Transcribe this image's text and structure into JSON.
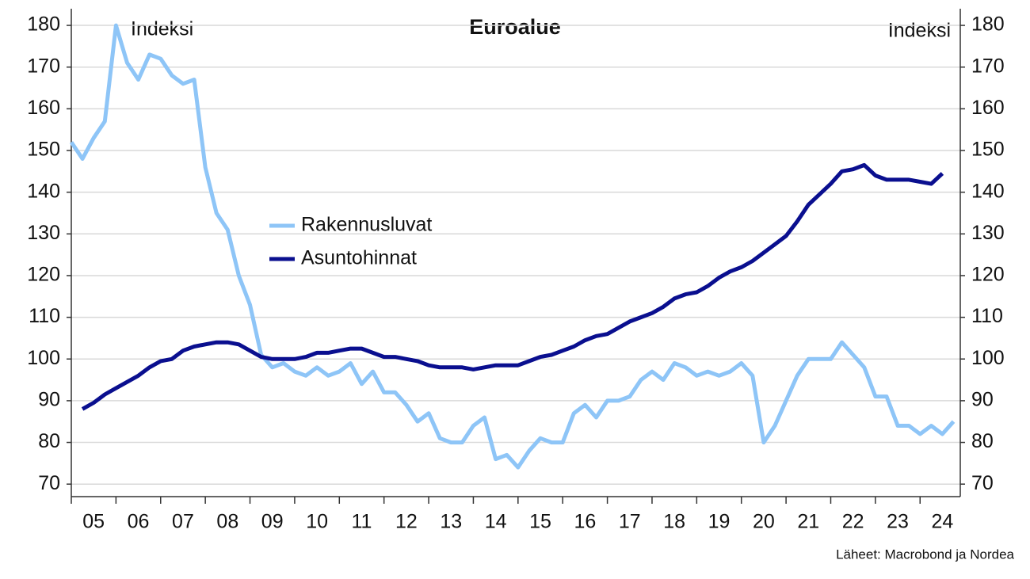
{
  "chart_data": {
    "type": "line",
    "title": "Euroalue",
    "ylabel": "Indeksi",
    "y2label": "Indeksi",
    "source": "Läheet: Macrobond ja Nordea",
    "x": [
      2005,
      2005.25,
      2005.5,
      2005.75,
      2006,
      2006.25,
      2006.5,
      2006.75,
      2007,
      2007.25,
      2007.5,
      2007.75,
      2008,
      2008.25,
      2008.5,
      2008.75,
      2009,
      2009.25,
      2009.5,
      2009.75,
      2010,
      2010.25,
      2010.5,
      2010.75,
      2011,
      2011.25,
      2011.5,
      2011.75,
      2012,
      2012.25,
      2012.5,
      2012.75,
      2013,
      2013.25,
      2013.5,
      2013.75,
      2014,
      2014.25,
      2014.5,
      2014.75,
      2015,
      2015.25,
      2015.5,
      2015.75,
      2016,
      2016.25,
      2016.5,
      2016.75,
      2017,
      2017.25,
      2017.5,
      2017.75,
      2018,
      2018.25,
      2018.5,
      2018.75,
      2019,
      2019.25,
      2019.5,
      2019.75,
      2020,
      2020.25,
      2020.5,
      2020.75,
      2021,
      2021.25,
      2021.5,
      2021.75,
      2022,
      2022.25,
      2022.5,
      2022.75,
      2023,
      2023.25,
      2023.5,
      2023.75,
      2024,
      2024.25,
      2024.5,
      2024.75
    ],
    "series": [
      {
        "name": "Rakennusluvat",
        "color": "#8ec5f7",
        "axis": "y",
        "values": [
          152,
          148,
          153,
          157,
          180,
          171,
          167,
          173,
          172,
          168,
          166,
          167,
          146,
          135,
          131,
          120,
          113,
          101,
          98,
          99,
          97,
          96,
          98,
          96,
          97,
          99,
          94,
          97,
          92,
          92,
          89,
          85,
          87,
          81,
          80,
          80,
          84,
          86,
          76,
          77,
          74,
          78,
          81,
          80,
          80,
          87,
          89,
          86,
          90,
          90,
          91,
          95,
          97,
          95,
          99,
          98,
          96,
          97,
          96,
          97,
          99,
          96,
          80,
          84,
          90,
          96,
          100,
          100,
          100,
          104,
          101,
          98,
          91,
          91,
          84,
          84,
          82,
          84,
          82,
          85
        ]
      },
      {
        "name": "Asuntohinnat",
        "color": "#0a0f8f",
        "axis": "y2",
        "values": [
          null,
          88,
          89.5,
          91.5,
          93,
          94.5,
          96,
          98,
          99.5,
          100,
          102,
          103,
          103.5,
          104,
          104,
          103.5,
          102,
          100.5,
          100,
          100,
          100,
          100.5,
          101.5,
          101.5,
          102,
          102.5,
          102.5,
          101.5,
          100.5,
          100.5,
          100,
          99.5,
          98.5,
          98,
          98,
          98,
          97.5,
          98,
          98.5,
          98.5,
          98.5,
          99.5,
          100.5,
          101,
          102,
          103,
          104.5,
          105.5,
          106,
          107.5,
          109,
          110,
          111,
          112.5,
          114.5,
          115.5,
          116,
          117.5,
          119.5,
          121,
          122,
          123.5,
          125.5,
          127.5,
          129.5,
          133,
          137,
          139.5,
          142,
          145,
          145.5,
          146.5,
          144,
          143,
          143,
          143,
          142.5,
          142,
          144.5,
          null
        ]
      }
    ],
    "xlim": [
      2005,
      2024.9
    ],
    "xticks": [
      {
        "value": 2005,
        "label": "05"
      },
      {
        "value": 2006,
        "label": "06"
      },
      {
        "value": 2007,
        "label": "07"
      },
      {
        "value": 2008,
        "label": "08"
      },
      {
        "value": 2009,
        "label": "09"
      },
      {
        "value": 2010,
        "label": "10"
      },
      {
        "value": 2011,
        "label": "11"
      },
      {
        "value": 2012,
        "label": "12"
      },
      {
        "value": 2013,
        "label": "13"
      },
      {
        "value": 2014,
        "label": "14"
      },
      {
        "value": 2015,
        "label": "15"
      },
      {
        "value": 2016,
        "label": "16"
      },
      {
        "value": 2017,
        "label": "17"
      },
      {
        "value": 2018,
        "label": "18"
      },
      {
        "value": 2019,
        "label": "19"
      },
      {
        "value": 2020,
        "label": "20"
      },
      {
        "value": 2021,
        "label": "21"
      },
      {
        "value": 2022,
        "label": "22"
      },
      {
        "value": 2023,
        "label": "23"
      },
      {
        "value": 2024,
        "label": "24"
      }
    ],
    "ylim": [
      67,
      184
    ],
    "yticks": [
      70,
      80,
      90,
      100,
      110,
      120,
      130,
      140,
      150,
      160,
      170,
      180
    ],
    "y2lim": [
      67,
      184
    ],
    "y2ticks": [
      70,
      80,
      90,
      100,
      110,
      120,
      130,
      140,
      150,
      160,
      170,
      180
    ],
    "grid": true
  }
}
